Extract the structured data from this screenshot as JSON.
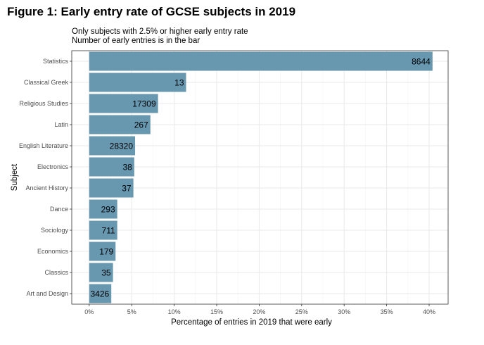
{
  "chart_data": {
    "type": "bar",
    "orientation": "horizontal",
    "title": "Figure 1: Early entry rate of GCSE subjects in 2019",
    "subtitle": [
      "Only subjects with 2.5% or higher early entry rate",
      "Number of early entries is in the bar"
    ],
    "xlabel": "Percentage of entries in 2019 that were early",
    "ylabel": "Subject",
    "xlim": [
      0,
      42
    ],
    "xticks": [
      0,
      5,
      10,
      15,
      20,
      25,
      30,
      35,
      40
    ],
    "xtick_labels": [
      "0%",
      "5%",
      "10%",
      "15%",
      "20%",
      "25%",
      "30%",
      "35%",
      "40%"
    ],
    "grid": true,
    "bar_color": "#6897b0",
    "categories": [
      "Statistics",
      "Classical Greek",
      "Religious Studies",
      "Latin",
      "English Literature",
      "Electronics",
      "Ancient History",
      "Dance",
      "Sociology",
      "Economics",
      "Classics",
      "Art and Design"
    ],
    "values": [
      40.4,
      11.4,
      8.1,
      7.2,
      5.4,
      5.3,
      5.2,
      3.3,
      3.3,
      3.1,
      2.8,
      2.6
    ],
    "bar_labels": [
      "8644",
      "13",
      "17309",
      "267",
      "28320",
      "38",
      "37",
      "293",
      "711",
      "179",
      "35",
      "3426"
    ]
  }
}
